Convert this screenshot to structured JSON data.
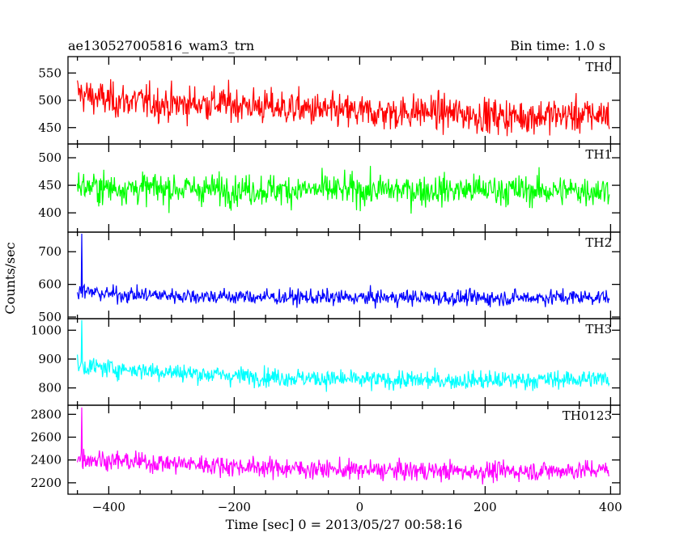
{
  "chart_data": {
    "type": "line",
    "title_left": "ae130527005816_wam3_trn",
    "title_right": "Bin time: 1.0 s",
    "xlabel": "Time [sec] 0 = 2013/05/27 00:58:16",
    "ylabel": "Counts/sec",
    "xlim": [
      -465,
      415
    ],
    "x_ticks": [
      -400,
      -200,
      0,
      200,
      400
    ],
    "x_tick_labels": [
      "−400",
      "−200",
      "0",
      "200",
      "400"
    ],
    "x_range": [
      -450,
      398
    ],
    "grid": false,
    "panels": [
      {
        "name": "TH0",
        "color": "#ff0000",
        "ylim": [
          420,
          580
        ],
        "y_ticks": [
          450,
          500,
          550
        ],
        "x": [
          -450,
          -440,
          -400,
          -350,
          -300,
          -250,
          -200,
          -150,
          -100,
          -50,
          0,
          50,
          100,
          150,
          200,
          250,
          300,
          350,
          398
        ],
        "y": [
          515,
          510,
          500,
          498,
          492,
          495,
          493,
          488,
          485,
          480,
          478,
          477,
          480,
          476,
          472,
          470,
          473,
          472,
          475
        ],
        "noise": 32,
        "spikes": []
      },
      {
        "name": "TH1",
        "color": "#00ff00",
        "ylim": [
          365,
          525
        ],
        "y_ticks": [
          400,
          450,
          500
        ],
        "x": [
          -450,
          -400,
          -300,
          -200,
          -100,
          0,
          100,
          200,
          300,
          398
        ],
        "y": [
          448,
          445,
          444,
          442,
          442,
          441,
          441,
          442,
          440,
          441
        ],
        "noise": 28,
        "spikes": []
      },
      {
        "name": "TH2",
        "color": "#0000ff",
        "ylim": [
          495,
          760
        ],
        "y_ticks": [
          500,
          600,
          700
        ],
        "x": [
          -450,
          -440,
          -400,
          -300,
          -200,
          -100,
          0,
          100,
          200,
          300,
          398
        ],
        "y": [
          580,
          578,
          570,
          566,
          562,
          560,
          559,
          560,
          558,
          560,
          562
        ],
        "noise": 24,
        "spikes": [
          {
            "x": -443,
            "y": 755
          }
        ]
      },
      {
        "name": "TH3",
        "color": "#00ffff",
        "ylim": [
          740,
          1040
        ],
        "y_ticks": [
          800,
          900,
          1000
        ],
        "x": [
          -450,
          -440,
          -400,
          -350,
          -300,
          -250,
          -200,
          -100,
          0,
          100,
          200,
          300,
          398
        ],
        "y": [
          870,
          875,
          868,
          862,
          855,
          848,
          842,
          835,
          828,
          826,
          826,
          828,
          832
        ],
        "noise": 32,
        "spikes": [
          {
            "x": -443,
            "y": 1035
          }
        ]
      },
      {
        "name": "TH0123",
        "color": "#ff00ff",
        "ylim": [
          2100,
          2880
        ],
        "y_ticks": [
          2200,
          2400,
          2600,
          2800
        ],
        "x": [
          -450,
          -440,
          -400,
          -350,
          -300,
          -250,
          -200,
          -100,
          0,
          100,
          200,
          300,
          398
        ],
        "y": [
          2410,
          2415,
          2395,
          2380,
          2370,
          2360,
          2345,
          2325,
          2310,
          2305,
          2300,
          2305,
          2315
        ],
        "noise": 85,
        "spikes": [
          {
            "x": -443,
            "y": 2860
          }
        ]
      }
    ]
  }
}
